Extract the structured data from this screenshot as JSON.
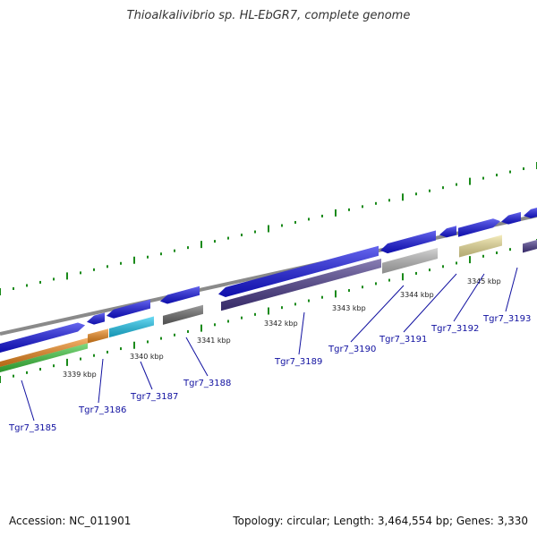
{
  "header": {
    "title": "Thioalkalivibrio sp. HL-EbGR7, complete genome"
  },
  "footer": {
    "accession": "Accession: NC_011901",
    "topology": "Topology: circular; Length: 3,464,554 bp; Genes: 3,330"
  },
  "colors": {
    "backbone": "#8a8a8a",
    "blue": "#1515e6",
    "purple": "#4a3a8c",
    "gray": "#6a6a6a",
    "light_gray": "#bdbdbd",
    "yellow": "#f0e39a",
    "cyan": "#1ec8f0",
    "orange": "#f08a1c",
    "green": "#3ec83e",
    "tick": "#1a8a1a",
    "label": "#1010a0"
  },
  "scale_labels": [
    "3339 kbp",
    "3340 kbp",
    "3341 kbp",
    "3342 kbp",
    "3343 kbp",
    "3344 kbp",
    "3345 kbp"
  ],
  "genes": [
    "Tgr7_3185",
    "Tgr7_3186",
    "Tgr7_3187",
    "Tgr7_3188",
    "Tgr7_3189",
    "Tgr7_3190",
    "Tgr7_3191",
    "Tgr7_3192",
    "Tgr7_3193"
  ]
}
